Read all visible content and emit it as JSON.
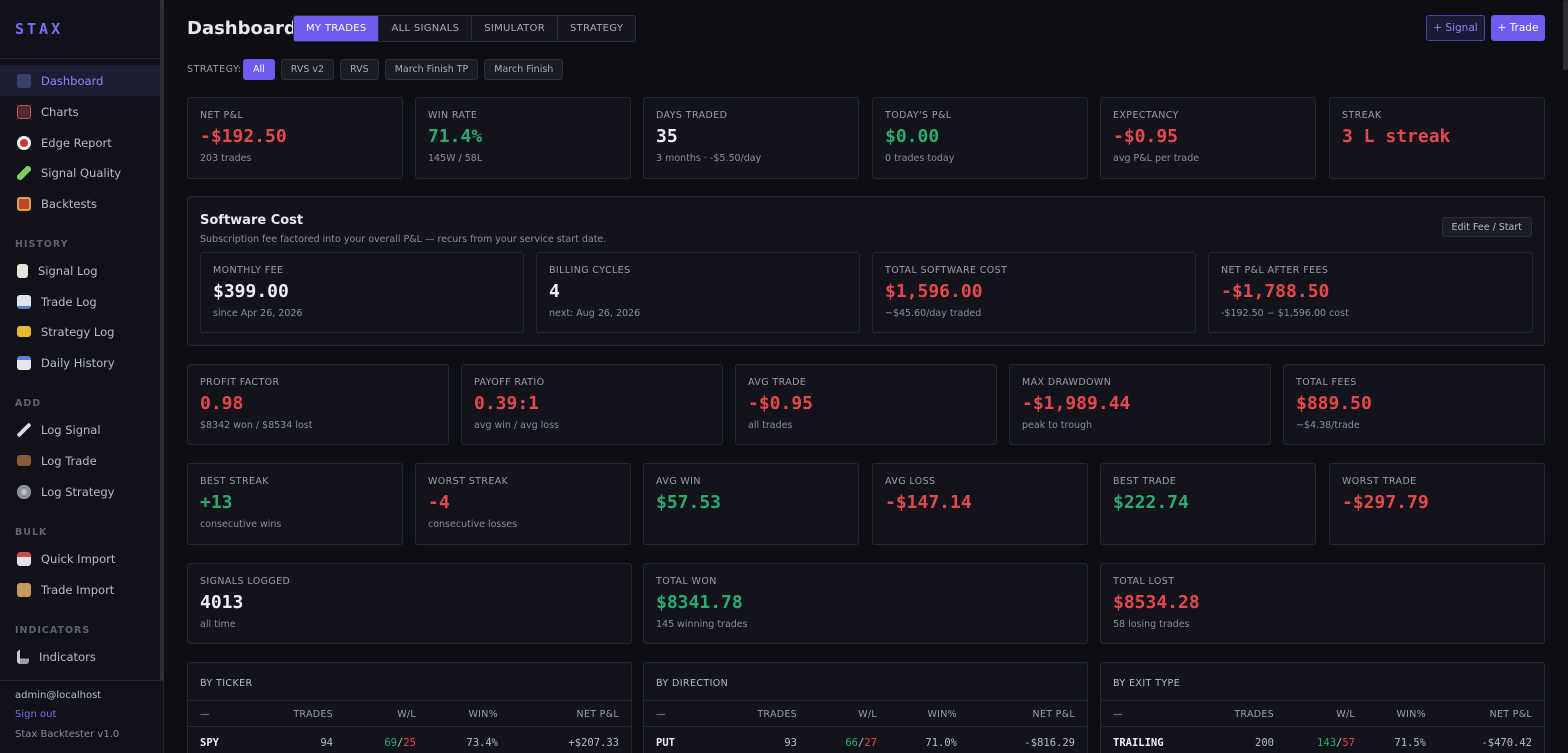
{
  "brand": "STAX",
  "sidebar": {
    "main": [
      {
        "label": "Dashboard",
        "icon": "dashboard-icon",
        "active": true
      },
      {
        "label": "Charts",
        "icon": "charts-icon"
      },
      {
        "label": "Edge Report",
        "icon": "target-icon"
      },
      {
        "label": "Signal Quality",
        "icon": "pencil-icon"
      },
      {
        "label": "Backtests",
        "icon": "backtests-icon"
      }
    ],
    "history_label": "HISTORY",
    "history": [
      {
        "label": "Signal Log",
        "icon": "signal-log-icon"
      },
      {
        "label": "Trade Log",
        "icon": "trade-log-icon"
      },
      {
        "label": "Strategy Log",
        "icon": "folder-icon"
      },
      {
        "label": "Daily History",
        "icon": "calendar-icon"
      }
    ],
    "add_label": "ADD",
    "add": [
      {
        "label": "Log Signal",
        "icon": "log-signal-icon"
      },
      {
        "label": "Log Trade",
        "icon": "briefcase-icon"
      },
      {
        "label": "Log Strategy",
        "icon": "gear-icon"
      }
    ],
    "bulk_label": "BULK",
    "bulk": [
      {
        "label": "Quick Import",
        "icon": "import-icon"
      },
      {
        "label": "Trade Import",
        "icon": "box-icon"
      }
    ],
    "indicators_label": "INDICATORS",
    "indicators": [
      {
        "label": "Indicators",
        "icon": "microscope-icon"
      }
    ],
    "user": "admin@localhost",
    "signout": "Sign out",
    "version": "Stax Backtester v1.0"
  },
  "header": {
    "title": "Dashboard",
    "tabs": [
      "MY TRADES",
      "ALL SIGNALS",
      "SIMULATOR",
      "STRATEGY"
    ],
    "active_tab": 0,
    "signal_button": "+ Signal",
    "trade_button": "+ Trade"
  },
  "strategy_filter": {
    "label": "STRATEGY:",
    "options": [
      "All",
      "RVS v2",
      "RVS",
      "March Finish TP",
      "March Finish"
    ],
    "active": 0
  },
  "row1": [
    {
      "label": "NET P&L",
      "value": "-$192.50",
      "sub": "203 trades",
      "tone": "red"
    },
    {
      "label": "WIN RATE",
      "value": "71.4%",
      "sub": "145W / 58L",
      "tone": "green"
    },
    {
      "label": "DAYS TRADED",
      "value": "35",
      "sub": "3 months · -$5.50/day",
      "tone": "white"
    },
    {
      "label": "TODAY'S P&L",
      "value": "$0.00",
      "sub": "0 trades today",
      "tone": "green"
    },
    {
      "label": "EXPECTANCY",
      "value": "-$0.95",
      "sub": "avg P&L per trade",
      "tone": "red"
    },
    {
      "label": "STREAK",
      "value": "3 L streak",
      "sub": "",
      "tone": "red"
    }
  ],
  "software": {
    "title": "Software Cost",
    "subtitle": "Subscription fee factored into your overall P&L — recurs from your service start date.",
    "edit_button": "Edit Fee / Start",
    "cards": [
      {
        "label": "MONTHLY FEE",
        "value": "$399.00",
        "sub": "since Apr 26, 2026",
        "tone": "white"
      },
      {
        "label": "BILLING CYCLES",
        "value": "4",
        "sub": "next: Aug 26, 2026",
        "tone": "white"
      },
      {
        "label": "TOTAL SOFTWARE COST",
        "value": "$1,596.00",
        "sub": "~$45.60/day traded",
        "tone": "red"
      },
      {
        "label": "NET P&L AFTER FEES",
        "value": "-$1,788.50",
        "sub": "-$192.50 − $1,596.00 cost",
        "tone": "red"
      }
    ]
  },
  "row3": [
    {
      "label": "PROFIT FACTOR",
      "value": "0.98",
      "sub": "$8342 won / $8534 lost",
      "tone": "red"
    },
    {
      "label": "PAYOFF RATIO",
      "value": "0.39:1",
      "sub": "avg win / avg loss",
      "tone": "red"
    },
    {
      "label": "AVG TRADE",
      "value": "-$0.95",
      "sub": "all trades",
      "tone": "red"
    },
    {
      "label": "MAX DRAWDOWN",
      "value": "-$1,989.44",
      "sub": "peak to trough",
      "tone": "red"
    },
    {
      "label": "TOTAL FEES",
      "value": "$889.50",
      "sub": "~$4.38/trade",
      "tone": "red"
    }
  ],
  "row4": [
    {
      "label": "BEST STREAK",
      "value": "+13",
      "sub": "consecutive wins",
      "tone": "green"
    },
    {
      "label": "WORST STREAK",
      "value": "-4",
      "sub": "consecutive losses",
      "tone": "red"
    },
    {
      "label": "AVG WIN",
      "value": "$57.53",
      "sub": "",
      "tone": "green"
    },
    {
      "label": "AVG LOSS",
      "value": "-$147.14",
      "sub": "",
      "tone": "red"
    },
    {
      "label": "BEST TRADE",
      "value": "$222.74",
      "sub": "",
      "tone": "green"
    },
    {
      "label": "WORST TRADE",
      "value": "-$297.79",
      "sub": "",
      "tone": "red"
    }
  ],
  "row5": [
    {
      "label": "SIGNALS LOGGED",
      "value": "4013",
      "sub": "all time",
      "tone": "white"
    },
    {
      "label": "TOTAL WON",
      "value": "$8341.78",
      "sub": "145 winning trades",
      "tone": "green"
    },
    {
      "label": "TOTAL LOST",
      "value": "$8534.28",
      "sub": "58 losing trades",
      "tone": "red"
    }
  ],
  "tables": [
    {
      "title": "BY TICKER",
      "headers": [
        "—",
        "TRADES",
        "W/L",
        "WIN%",
        "NET P&L"
      ],
      "rows": [
        {
          "name": "SPY",
          "trades": "94",
          "w": "69",
          "l": "25",
          "winpct": "73.4%",
          "pnl": "+$207.33",
          "pnl_tone": "green"
        }
      ]
    },
    {
      "title": "BY DIRECTION",
      "headers": [
        "—",
        "TRADES",
        "W/L",
        "WIN%",
        "NET P&L"
      ],
      "rows": [
        {
          "name": "PUT",
          "trades": "93",
          "w": "66",
          "l": "27",
          "winpct": "71.0%",
          "pnl": "-$816.29",
          "pnl_tone": "red"
        }
      ]
    },
    {
      "title": "BY EXIT TYPE",
      "headers": [
        "—",
        "TRADES",
        "W/L",
        "WIN%",
        "NET P&L"
      ],
      "rows": [
        {
          "name": "TRAILING",
          "trades": "200",
          "w": "143",
          "l": "57",
          "winpct": "71.5%",
          "pnl": "-$470.42",
          "pnl_tone": "red"
        }
      ]
    }
  ],
  "colors": {
    "accent": "#6c5cf0",
    "red": "#e5484d",
    "green": "#2bab6e",
    "bg": "#0d0e14"
  }
}
